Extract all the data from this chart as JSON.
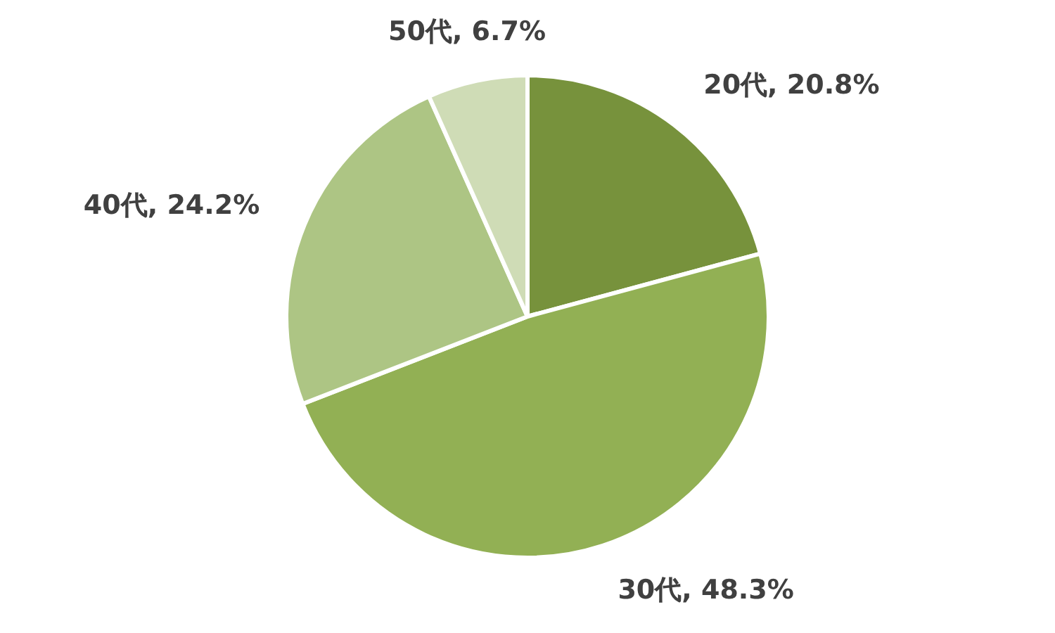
{
  "chart_data": {
    "type": "pie",
    "categories": [
      "20代",
      "30代",
      "40代",
      "50代"
    ],
    "values": [
      20.8,
      48.3,
      24.2,
      6.7
    ],
    "colors": [
      "#77923c",
      "#92b054",
      "#adc584",
      "#cfdcb6"
    ],
    "value_labels": [
      ", 20.8%",
      ", 48.3%",
      ", 24.2%",
      ", 6.7%"
    ],
    "legend": false
  }
}
